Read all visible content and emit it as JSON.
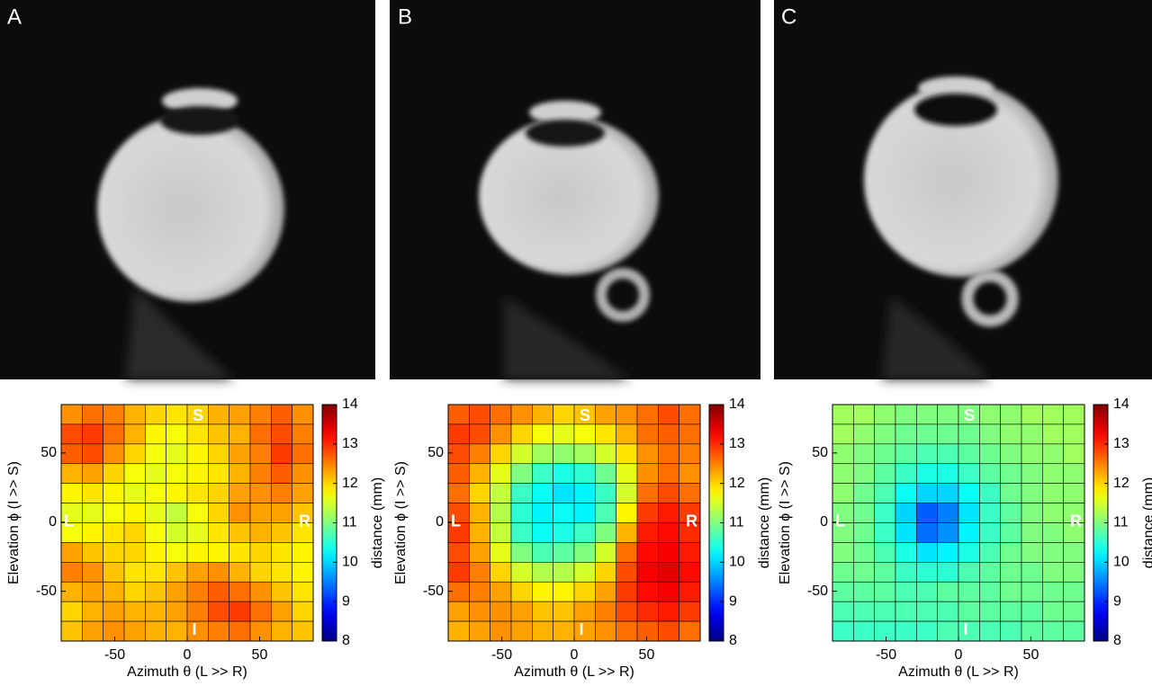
{
  "panel_labels": [
    "A",
    "B",
    "C"
  ],
  "chart_data": [
    {
      "type": "heatmap",
      "xlabel": "Azimuth θ (L >> R)",
      "ylabel": "Elevation ϕ (I >> S)",
      "xlim": [
        -87,
        87
      ],
      "ylim": [
        -86,
        85
      ],
      "xticks": [
        -50,
        0,
        50
      ],
      "yticks": [
        -50,
        0,
        50
      ],
      "annotations": {
        "top": "S",
        "bottom": "I",
        "left": "L",
        "right": "R"
      },
      "colorbar": {
        "label": "distance (mm)",
        "lim": [
          8,
          14
        ],
        "ticks": [
          8,
          9,
          10,
          11,
          12,
          13,
          14
        ],
        "colormap": "jet"
      },
      "values": [
        [
          12.4,
          12.6,
          12.5,
          12.2,
          12.0,
          11.9,
          12.0,
          12.2,
          12.3,
          12.5,
          12.7,
          12.4
        ],
        [
          12.8,
          12.9,
          12.6,
          12.2,
          11.8,
          11.7,
          11.9,
          12.1,
          12.2,
          12.6,
          12.8,
          12.5
        ],
        [
          12.7,
          12.8,
          12.4,
          12.0,
          11.7,
          11.6,
          11.8,
          12.0,
          12.3,
          12.5,
          12.9,
          12.6
        ],
        [
          12.2,
          12.3,
          12.0,
          11.7,
          11.6,
          11.7,
          11.8,
          11.9,
          12.2,
          12.5,
          12.7,
          12.4
        ],
        [
          11.8,
          11.9,
          11.8,
          11.6,
          11.7,
          11.8,
          11.9,
          12.0,
          12.3,
          12.4,
          12.5,
          12.3
        ],
        [
          11.6,
          11.6,
          11.7,
          11.8,
          11.6,
          11.4,
          11.7,
          12.0,
          12.4,
          12.3,
          12.3,
          12.1
        ],
        [
          11.7,
          11.8,
          11.9,
          12.0,
          11.7,
          11.5,
          11.6,
          11.9,
          12.1,
          12.2,
          12.1,
          11.9
        ],
        [
          12.3,
          12.1,
          12.0,
          12.0,
          11.8,
          11.7,
          11.8,
          11.8,
          11.9,
          12.0,
          11.9,
          11.8
        ],
        [
          12.5,
          12.4,
          12.1,
          11.9,
          11.9,
          12.1,
          12.3,
          12.4,
          12.2,
          12.0,
          11.9,
          11.8
        ],
        [
          12.2,
          12.3,
          12.2,
          12.0,
          12.1,
          12.3,
          12.5,
          12.7,
          12.6,
          12.4,
          12.1,
          11.9
        ],
        [
          12.0,
          12.2,
          12.3,
          12.2,
          12.2,
          12.3,
          12.5,
          12.8,
          12.9,
          12.6,
          12.3,
          12.0
        ],
        [
          12.1,
          12.3,
          12.4,
          12.3,
          12.2,
          12.2,
          12.4,
          12.5,
          12.6,
          12.4,
          12.2,
          12.1
        ]
      ]
    },
    {
      "type": "heatmap",
      "xlabel": "Azimuth θ (L >> R)",
      "ylabel": "Elevation ϕ (I >> S)",
      "xlim": [
        -87,
        87
      ],
      "ylim": [
        -86,
        85
      ],
      "xticks": [
        -50,
        0,
        50
      ],
      "yticks": [
        -50,
        0,
        50
      ],
      "annotations": {
        "top": "S",
        "bottom": "I",
        "left": "L",
        "right": "R"
      },
      "colorbar": {
        "label": "distance (mm)",
        "lim": [
          8,
          14
        ],
        "ticks": [
          8,
          9,
          10,
          11,
          12,
          13,
          14
        ],
        "colormap": "jet"
      },
      "values": [
        [
          12.7,
          12.8,
          12.6,
          12.4,
          12.2,
          12.0,
          12.1,
          12.3,
          12.4,
          12.6,
          12.8,
          12.6
        ],
        [
          12.9,
          12.8,
          12.4,
          12.0,
          11.7,
          11.6,
          11.7,
          11.9,
          12.2,
          12.6,
          12.7,
          12.6
        ],
        [
          12.8,
          12.5,
          12.0,
          11.5,
          11.2,
          11.1,
          11.2,
          11.5,
          11.9,
          12.4,
          12.6,
          12.5
        ],
        [
          12.7,
          12.2,
          11.6,
          11.0,
          10.6,
          10.4,
          10.5,
          10.9,
          11.6,
          12.4,
          12.6,
          12.4
        ],
        [
          12.6,
          12.0,
          11.4,
          10.6,
          10.3,
          10.1,
          10.2,
          10.6,
          11.5,
          12.6,
          12.8,
          12.6
        ],
        [
          12.8,
          12.2,
          11.3,
          10.5,
          10.2,
          10.3,
          10.2,
          10.7,
          11.8,
          12.9,
          13.1,
          12.9
        ],
        [
          12.9,
          12.2,
          11.4,
          10.6,
          10.3,
          10.4,
          10.6,
          11.0,
          12.2,
          13.1,
          13.2,
          13.0
        ],
        [
          12.8,
          12.3,
          11.6,
          11.0,
          10.7,
          10.8,
          11.0,
          11.5,
          12.6,
          13.2,
          13.3,
          13.1
        ],
        [
          12.9,
          12.5,
          12.0,
          11.5,
          11.3,
          11.3,
          11.5,
          12.0,
          12.8,
          13.3,
          13.4,
          13.2
        ],
        [
          12.6,
          12.5,
          12.3,
          12.0,
          11.8,
          11.8,
          12.0,
          12.3,
          12.9,
          13.2,
          13.3,
          13.1
        ],
        [
          12.3,
          12.4,
          12.4,
          12.3,
          12.1,
          12.1,
          12.3,
          12.5,
          12.8,
          13.0,
          13.1,
          12.9
        ],
        [
          12.2,
          12.3,
          12.4,
          12.3,
          12.2,
          12.2,
          12.3,
          12.4,
          12.6,
          12.7,
          12.8,
          12.6
        ]
      ]
    },
    {
      "type": "heatmap",
      "xlabel": "Azimuth θ (L >> R)",
      "ylabel": "Elevation ϕ (I >> S)",
      "xlim": [
        -87,
        87
      ],
      "ylim": [
        -86,
        85
      ],
      "xticks": [
        -50,
        0,
        50
      ],
      "yticks": [
        -50,
        0,
        50
      ],
      "annotations": {
        "top": "S",
        "bottom": "I",
        "left": "L",
        "right": "R"
      },
      "colorbar": {
        "label": "distance (mm)",
        "lim": [
          8,
          14
        ],
        "ticks": [
          8,
          9,
          10,
          11,
          12,
          13,
          14
        ],
        "colormap": "jet"
      },
      "values": [
        [
          11.2,
          11.2,
          11.1,
          11.0,
          11.0,
          11.0,
          11.0,
          11.1,
          11.1,
          11.2,
          11.2,
          11.2
        ],
        [
          11.2,
          11.1,
          11.0,
          10.9,
          10.9,
          10.9,
          10.9,
          11.0,
          11.1,
          11.1,
          11.2,
          11.2
        ],
        [
          11.1,
          11.0,
          10.9,
          10.8,
          10.7,
          10.7,
          10.8,
          10.9,
          11.0,
          11.1,
          11.1,
          11.2
        ],
        [
          11.1,
          11.0,
          10.8,
          10.6,
          10.4,
          10.4,
          10.6,
          10.8,
          10.9,
          11.0,
          11.1,
          11.1
        ],
        [
          11.1,
          10.9,
          10.7,
          10.3,
          10.0,
          10.0,
          10.3,
          10.6,
          10.9,
          11.0,
          11.1,
          11.1
        ],
        [
          11.0,
          10.9,
          10.6,
          10.0,
          9.3,
          9.5,
          10.1,
          10.6,
          10.8,
          11.0,
          11.1,
          11.1
        ],
        [
          11.0,
          10.9,
          10.6,
          10.1,
          9.4,
          9.6,
          10.2,
          10.6,
          10.8,
          11.0,
          11.0,
          11.1
        ],
        [
          11.0,
          10.9,
          10.7,
          10.4,
          10.1,
          10.2,
          10.4,
          10.7,
          10.9,
          11.0,
          11.0,
          11.0
        ],
        [
          10.9,
          10.9,
          10.8,
          10.6,
          10.5,
          10.5,
          10.7,
          10.8,
          10.9,
          10.9,
          11.0,
          11.0
        ],
        [
          10.8,
          10.8,
          10.8,
          10.7,
          10.7,
          10.8,
          10.8,
          10.8,
          10.9,
          10.9,
          10.9,
          10.9
        ],
        [
          10.7,
          10.7,
          10.7,
          10.7,
          10.7,
          10.7,
          10.8,
          10.8,
          10.8,
          10.8,
          10.9,
          10.9
        ],
        [
          10.6,
          10.6,
          10.6,
          10.6,
          10.6,
          10.7,
          10.7,
          10.7,
          10.7,
          10.8,
          10.8,
          10.8
        ]
      ]
    }
  ]
}
